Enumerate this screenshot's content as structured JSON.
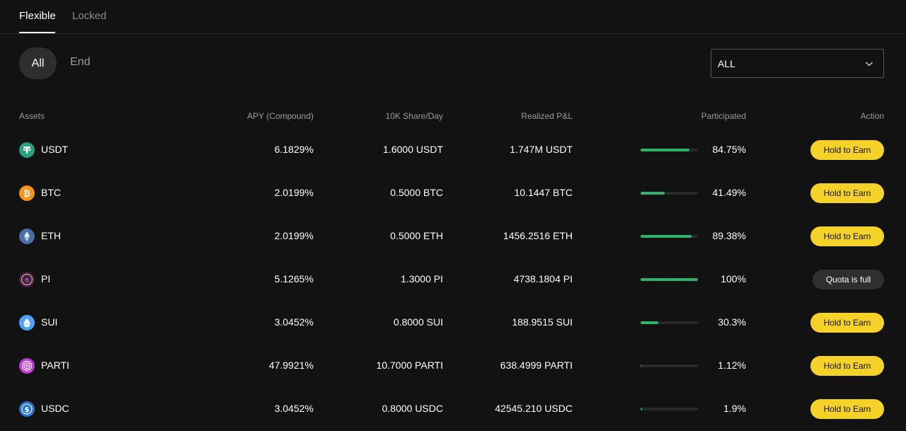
{
  "tabs": [
    {
      "label": "Flexible",
      "active": true
    },
    {
      "label": "Locked",
      "active": false
    }
  ],
  "segments": [
    {
      "label": "All",
      "active": true
    },
    {
      "label": "End",
      "active": false
    }
  ],
  "filter": {
    "selected": "ALL"
  },
  "columns": {
    "assets": "Assets",
    "apy": "APY (Compound)",
    "share": "10K Share/Day",
    "pnl": "Realized P&L",
    "participated": "Participated",
    "action": "Action"
  },
  "rows": [
    {
      "asset": "USDT",
      "icon": "usdt-icon",
      "color": "#26a17b",
      "apy": "6.1829%",
      "share": "1.6000 USDT",
      "pnl": "1.747M USDT",
      "participated": "84.75%",
      "progress": 0.8475,
      "action": "Hold to Earn",
      "status": "earn"
    },
    {
      "asset": "BTC",
      "icon": "btc-icon",
      "color": "#f7931a",
      "apy": "2.0199%",
      "share": "0.5000 BTC",
      "pnl": "10.1447 BTC",
      "participated": "41.49%",
      "progress": 0.4149,
      "action": "Hold to Earn",
      "status": "earn"
    },
    {
      "asset": "ETH",
      "icon": "eth-icon",
      "color": "#4a6fa5",
      "apy": "2.0199%",
      "share": "0.5000 ETH",
      "pnl": "1456.2516 ETH",
      "participated": "89.38%",
      "progress": 0.8938,
      "action": "Hold to Earn",
      "status": "earn"
    },
    {
      "asset": "PI",
      "icon": "pi-icon",
      "color": "#5b2a86",
      "apy": "5.1265%",
      "share": "1.3000 PI",
      "pnl": "4738.1804 PI",
      "participated": "100%",
      "progress": 1.0,
      "action": "Quota is full",
      "status": "full"
    },
    {
      "asset": "SUI",
      "icon": "sui-icon",
      "color": "#4da2ff",
      "apy": "3.0452%",
      "share": "0.8000 SUI",
      "pnl": "188.9515 SUI",
      "participated": "30.3%",
      "progress": 0.303,
      "action": "Hold to Earn",
      "status": "earn"
    },
    {
      "asset": "PARTI",
      "icon": "parti-icon",
      "color": "#c13bd8",
      "apy": "47.9921%",
      "share": "10.7000 PARTI",
      "pnl": "638.4999 PARTI",
      "participated": "1.12%",
      "progress": 0.0112,
      "action": "Hold to Earn",
      "status": "earn"
    },
    {
      "asset": "USDC",
      "icon": "usdc-icon",
      "color": "#2775ca",
      "apy": "3.0452%",
      "share": "0.8000 USDC",
      "pnl": "42545.210 USDC",
      "participated": "1.9%",
      "progress": 0.019,
      "action": "Hold to Earn",
      "status": "earn"
    }
  ]
}
